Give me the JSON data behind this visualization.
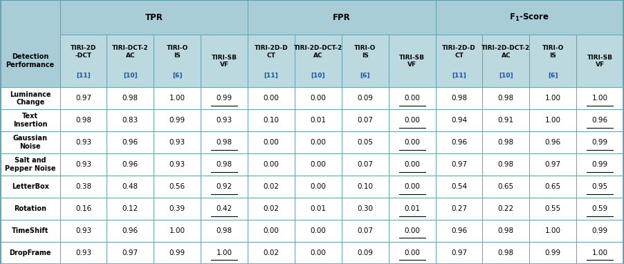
{
  "header_bg": "#a8cdd6",
  "subheader_bg": "#bcd9e0",
  "border_color": "#5a9aaa",
  "blue_ref_color": "#1155aa",
  "col_groups": [
    "TPR",
    "FPR",
    "F₁-Score"
  ],
  "col_header_main": [
    "TIRI-2D\n-DCT",
    "TIRI-DCT-2\nAC",
    "TIRI-O\nIS",
    "TIRI-SB\nVF",
    "TIRI-2D-D\nCT",
    "TIRI-2D-DCT-2\nAC",
    "TIRI-O\nIS",
    "TIRI-SB\nVF",
    "TIRI-2D-D\nCT",
    "TIRI-2D-DCT-2\nAC",
    "TIRI-O\nIS",
    "TIRI-SB\nVF"
  ],
  "col_header_ref": [
    "[11]",
    "[10]",
    "[6]",
    "",
    "[11]",
    "[10]",
    "[6]",
    "",
    "[11]",
    "[10]",
    "[6]",
    ""
  ],
  "row_labels": [
    "Luminance\nChange",
    "Text\nInsertion",
    "Gaussian\nNoise",
    "Salt and\nPepper Noise",
    "LetterBox",
    "Rotation",
    "TimeShift",
    "DropFrame"
  ],
  "data": [
    [
      0.97,
      0.98,
      1.0,
      0.99,
      0.0,
      0.0,
      0.09,
      0.0,
      0.98,
      0.98,
      1.0,
      1.0
    ],
    [
      0.98,
      0.83,
      0.99,
      0.93,
      0.1,
      0.01,
      0.07,
      0.0,
      0.94,
      0.91,
      1.0,
      0.96
    ],
    [
      0.93,
      0.96,
      0.93,
      0.98,
      0.0,
      0.0,
      0.05,
      0.0,
      0.96,
      0.98,
      0.96,
      0.99
    ],
    [
      0.93,
      0.96,
      0.93,
      0.98,
      0.0,
      0.0,
      0.07,
      0.0,
      0.97,
      0.98,
      0.97,
      0.99
    ],
    [
      0.38,
      0.48,
      0.56,
      0.92,
      0.02,
      0.0,
      0.1,
      0.0,
      0.54,
      0.65,
      0.65,
      0.95
    ],
    [
      0.16,
      0.12,
      0.39,
      0.42,
      0.02,
      0.01,
      0.3,
      0.01,
      0.27,
      0.22,
      0.55,
      0.59
    ],
    [
      0.93,
      0.96,
      1.0,
      0.98,
      0.0,
      0.0,
      0.07,
      0.0,
      0.96,
      0.98,
      1.0,
      0.99
    ],
    [
      0.93,
      0.97,
      0.99,
      1.0,
      0.02,
      0.0,
      0.09,
      0.0,
      0.97,
      0.98,
      0.99,
      1.0
    ]
  ],
  "underlined_cells": [
    [
      0,
      3
    ],
    [
      0,
      7
    ],
    [
      0,
      11
    ],
    [
      1,
      7
    ],
    [
      1,
      11
    ],
    [
      2,
      3
    ],
    [
      2,
      7
    ],
    [
      2,
      11
    ],
    [
      3,
      3
    ],
    [
      3,
      7
    ],
    [
      3,
      11
    ],
    [
      4,
      3
    ],
    [
      4,
      7
    ],
    [
      4,
      11
    ],
    [
      5,
      3
    ],
    [
      5,
      7
    ],
    [
      5,
      11
    ],
    [
      6,
      7
    ],
    [
      7,
      3
    ],
    [
      7,
      7
    ],
    [
      7,
      11
    ]
  ],
  "figsize": [
    9.02,
    3.82
  ],
  "dpi": 100
}
